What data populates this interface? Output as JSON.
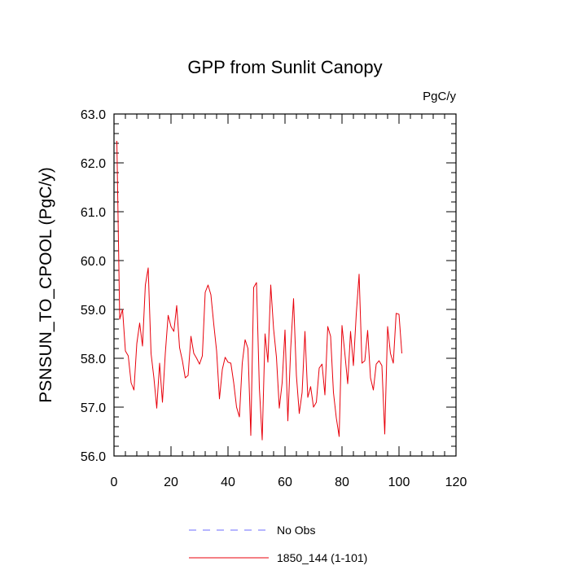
{
  "chart_data": {
    "type": "line",
    "title": "GPP from Sunlit Canopy",
    "units": "PgC/y",
    "ylabel": "PSNSUN_TO_CPOOL  (PgC/y)",
    "xlabel": "",
    "xlim": [
      0,
      120
    ],
    "ylim": [
      56.0,
      63.0
    ],
    "xticks": [
      0,
      20,
      40,
      60,
      80,
      100,
      120
    ],
    "xtick_labels": [
      "0",
      "20",
      "40",
      "60",
      "80",
      "100",
      "120"
    ],
    "yticks": [
      56.0,
      57.0,
      58.0,
      59.0,
      60.0,
      61.0,
      62.0,
      63.0
    ],
    "ytick_labels": [
      "56.0",
      "57.0",
      "58.0",
      "59.0",
      "60.0",
      "61.0",
      "62.0",
      "63.0"
    ],
    "grid": false,
    "legend": [
      {
        "label": "No Obs",
        "color": "#6b6bff",
        "style": "dashed"
      },
      {
        "label": "1850_144 (1-101)",
        "color": "#e8000b",
        "style": "solid"
      }
    ],
    "series": [
      {
        "name": "1850_144 (1-101)",
        "color": "#e8000b",
        "x": [
          1,
          2,
          3,
          4,
          5,
          6,
          7,
          8,
          9,
          10,
          11,
          12,
          13,
          14,
          15,
          16,
          17,
          18,
          19,
          20,
          21,
          22,
          23,
          24,
          25,
          26,
          27,
          28,
          29,
          30,
          31,
          32,
          33,
          34,
          35,
          36,
          37,
          38,
          39,
          40,
          41,
          42,
          43,
          44,
          45,
          46,
          47,
          48,
          49,
          50,
          51,
          52,
          53,
          54,
          55,
          56,
          57,
          58,
          59,
          60,
          61,
          62,
          63,
          64,
          65,
          66,
          67,
          68,
          69,
          70,
          71,
          72,
          73,
          74,
          75,
          76,
          77,
          78,
          79,
          80,
          81,
          82,
          83,
          84,
          85,
          86,
          87,
          88,
          89,
          90,
          91,
          92,
          93,
          94,
          95,
          96,
          97,
          98,
          99,
          100,
          101
        ],
        "values": [
          62.45,
          58.8,
          59.0,
          58.15,
          58.05,
          57.5,
          57.35,
          58.3,
          58.72,
          58.25,
          59.5,
          59.85,
          58.1,
          57.6,
          56.98,
          57.9,
          57.1,
          58.1,
          58.88,
          58.65,
          58.55,
          59.08,
          58.22,
          57.95,
          57.6,
          57.65,
          58.45,
          58.1,
          58.0,
          57.88,
          58.05,
          59.35,
          59.5,
          59.3,
          58.7,
          58.15,
          57.17,
          57.77,
          58.02,
          57.92,
          57.9,
          57.5,
          57.0,
          56.8,
          57.9,
          58.38,
          58.2,
          56.42,
          59.45,
          59.55,
          57.4,
          56.33,
          58.5,
          57.92,
          59.5,
          58.6,
          58.02,
          56.98,
          57.5,
          58.58,
          56.72,
          58.2,
          59.22,
          57.65,
          56.87,
          57.3,
          58.55,
          57.2,
          57.42,
          57.0,
          57.1,
          57.8,
          57.88,
          57.25,
          58.65,
          58.45,
          57.3,
          56.78,
          56.4,
          58.67,
          58.1,
          57.48,
          58.55,
          57.85,
          58.9,
          59.72,
          57.9,
          57.95,
          58.57,
          57.6,
          57.35,
          57.88,
          57.95,
          57.85,
          56.45,
          58.65,
          58.1,
          57.9,
          58.92,
          58.9,
          58.1
        ]
      }
    ]
  }
}
